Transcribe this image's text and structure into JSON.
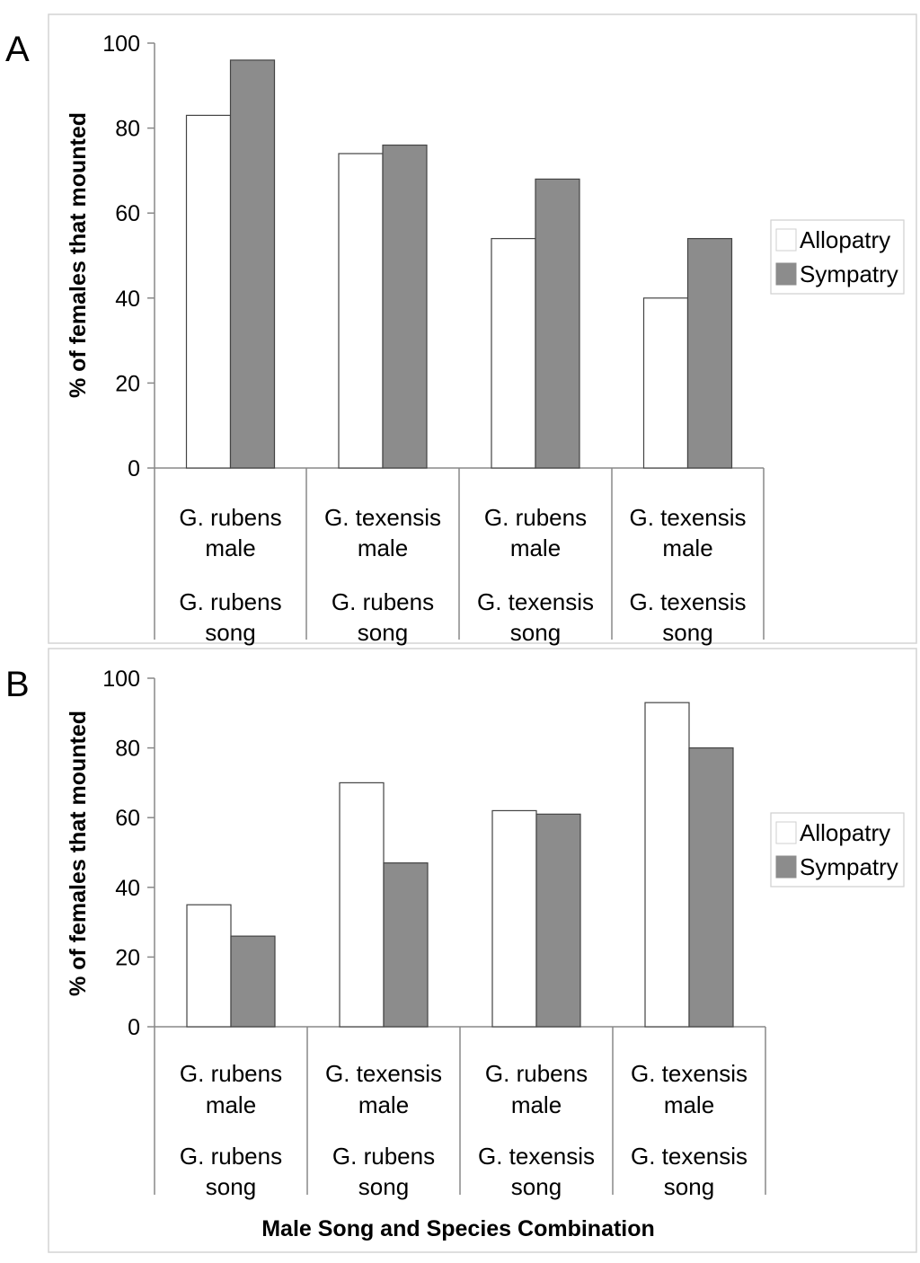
{
  "figure": {
    "xlabel": "Male Song and Species Combination"
  },
  "chart_data": [
    {
      "panel": "A",
      "type": "bar",
      "ylabel": "% of females that mounted",
      "ylim": [
        0,
        100
      ],
      "yticks": [
        0,
        20,
        40,
        60,
        80,
        100
      ],
      "categories": [
        {
          "male": "G. rubens male",
          "song": "G. rubens song"
        },
        {
          "male": "G. texensis male",
          "song": "G. rubens song"
        },
        {
          "male": "G. rubens male",
          "song": "G. texensis song"
        },
        {
          "male": "G. texensis male",
          "song": "G. texensis song"
        }
      ],
      "series": [
        {
          "name": "Allopatry",
          "color": "#ffffff",
          "values": [
            83,
            74,
            54,
            40
          ]
        },
        {
          "name": "Sympatry",
          "color": "#8c8c8c",
          "values": [
            96,
            76,
            68,
            54
          ]
        }
      ],
      "legend": "right"
    },
    {
      "panel": "B",
      "type": "bar",
      "ylabel": "% of females that mounted",
      "ylim": [
        0,
        100
      ],
      "yticks": [
        0,
        20,
        40,
        60,
        80,
        100
      ],
      "categories": [
        {
          "male": "G. rubens male",
          "song": "G. rubens song"
        },
        {
          "male": "G. texensis male",
          "song": "G. rubens song"
        },
        {
          "male": "G. rubens male",
          "song": "G. texensis song"
        },
        {
          "male": "G. texensis male",
          "song": "G. texensis song"
        }
      ],
      "series": [
        {
          "name": "Allopatry",
          "color": "#ffffff",
          "values": [
            35,
            70,
            62,
            93
          ]
        },
        {
          "name": "Sympatry",
          "color": "#8c8c8c",
          "values": [
            26,
            47,
            61,
            80
          ]
        }
      ],
      "legend": "right"
    }
  ]
}
